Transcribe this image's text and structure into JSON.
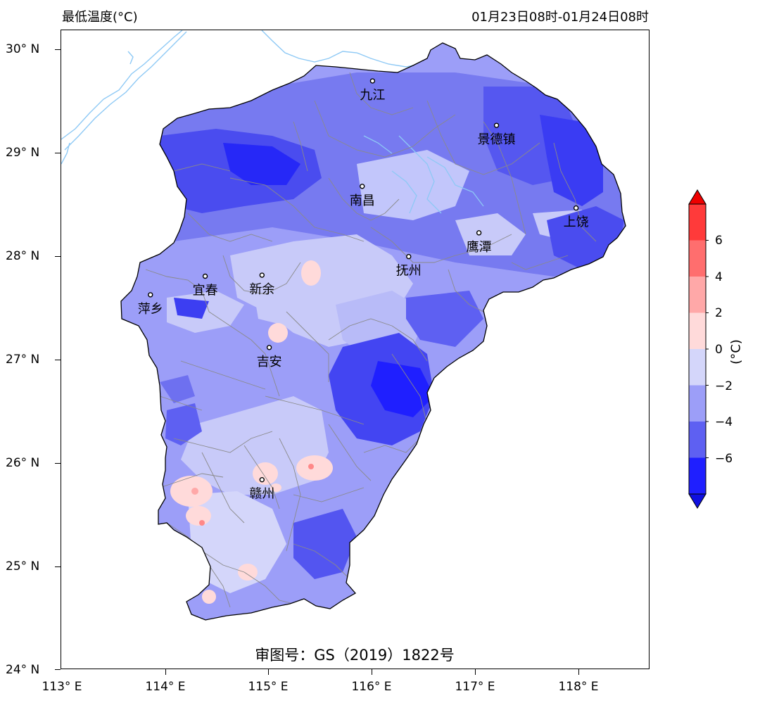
{
  "header": {
    "left_title": "最低温度(°C)",
    "right_title": "01月23日08时-01月24日08时"
  },
  "axes": {
    "lat_labels": [
      "30° N",
      "29° N",
      "28° N",
      "27° N",
      "26° N",
      "25° N",
      "24° N"
    ],
    "lon_labels": [
      "113° E",
      "114° E",
      "115° E",
      "116° E",
      "117° E",
      "118° E"
    ]
  },
  "cities": [
    {
      "name": "九江",
      "lon": 116.0,
      "lat": 29.7
    },
    {
      "name": "景德镇",
      "lon": 117.2,
      "lat": 29.27
    },
    {
      "name": "南昌",
      "lon": 115.9,
      "lat": 28.68
    },
    {
      "name": "上饶",
      "lon": 117.97,
      "lat": 28.47
    },
    {
      "name": "鹰潭",
      "lon": 117.03,
      "lat": 28.23
    },
    {
      "name": "抚州",
      "lon": 116.35,
      "lat": 28.0
    },
    {
      "name": "宜春",
      "lon": 114.38,
      "lat": 27.81
    },
    {
      "name": "新余",
      "lon": 114.93,
      "lat": 27.82
    },
    {
      "name": "萍乡",
      "lon": 113.85,
      "lat": 27.63
    },
    {
      "name": "吉安",
      "lon": 115.0,
      "lat": 27.12
    },
    {
      "name": "赣州",
      "lon": 114.93,
      "lat": 25.84
    }
  ],
  "approval_text": "审图号：GS（2019）1822号",
  "colorbar": {
    "unit": "(°C)",
    "tick_labels": [
      "6",
      "4",
      "2",
      "0",
      "−2",
      "−4",
      "−6"
    ],
    "bins": [
      {
        "range": "<-8",
        "color": "#1010e0"
      },
      {
        "range": "-8~-6",
        "color": "#1f1fff"
      },
      {
        "range": "-6~-4",
        "color": "#5e60f2"
      },
      {
        "range": "-4~-2",
        "color": "#9c9ef8"
      },
      {
        "range": "-2~0",
        "color": "#d4d6fa"
      },
      {
        "range": "0~2",
        "color": "#ffdada"
      },
      {
        "range": "2~4",
        "color": "#ffa8a8"
      },
      {
        "range": "4~6",
        "color": "#ff6e6e"
      },
      {
        "range": "6~8",
        "color": "#ff3a3a"
      },
      {
        "range": ">8",
        "color": "#ee0000"
      }
    ]
  },
  "colors": {
    "river": "#8ec9f5",
    "county_border": "#8a8a8a",
    "province_border": "#000000"
  }
}
